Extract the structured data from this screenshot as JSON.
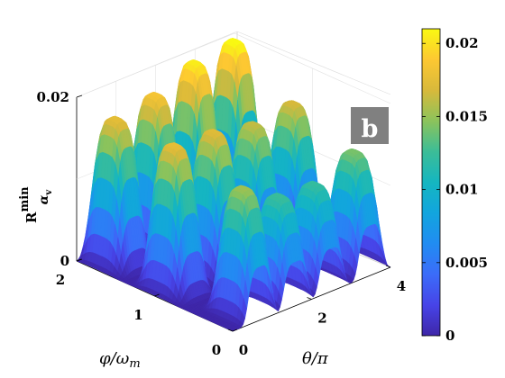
{
  "chart_data": {
    "type": "surface3d",
    "title": "",
    "panel_label": "b",
    "xlabel": "φ/ω",
    "xlabel_sub": "m",
    "ylabel": "θ/π",
    "zlabel": "R",
    "zlabel_sup": "min",
    "zlabel_sub": "α",
    "zlabel_subsub": "v",
    "xlim": [
      0,
      2
    ],
    "ylim": [
      0,
      4
    ],
    "zlim": [
      0,
      0.02
    ],
    "x_ticks": [
      "0",
      "1",
      "2"
    ],
    "y_ticks": [
      "0",
      "2",
      "4"
    ],
    "z_ticks": [
      "0",
      "0.02"
    ],
    "colorbar": {
      "min": 0,
      "max": 0.021,
      "ticks": [
        "0",
        "0.005",
        "0.01",
        "0.015",
        "0.02"
      ],
      "tick_values": [
        0,
        0.005,
        0.01,
        0.015,
        0.02
      ],
      "colormap": "parula"
    },
    "peaks": [
      {
        "phi_over_omega": 0.22,
        "theta_over_pi": 0.7,
        "z": 0.0152
      },
      {
        "phi_over_omega": 0.22,
        "theta_over_pi": 1.6,
        "z": 0.0125
      },
      {
        "phi_over_omega": 0.22,
        "theta_over_pi": 2.5,
        "z": 0.0122
      },
      {
        "phi_over_omega": 0.22,
        "theta_over_pi": 3.5,
        "z": 0.0142
      },
      {
        "phi_over_omega": 1.0,
        "theta_over_pi": 0.5,
        "z": 0.0175
      },
      {
        "phi_over_omega": 1.0,
        "theta_over_pi": 1.5,
        "z": 0.0172
      },
      {
        "phi_over_omega": 1.0,
        "theta_over_pi": 2.5,
        "z": 0.0162
      },
      {
        "phi_over_omega": 1.0,
        "theta_over_pi": 3.5,
        "z": 0.0168
      },
      {
        "phi_over_omega": 1.75,
        "theta_over_pi": 0.5,
        "z": 0.0175
      },
      {
        "phi_over_omega": 1.75,
        "theta_over_pi": 1.5,
        "z": 0.0185
      },
      {
        "phi_over_omega": 1.75,
        "theta_over_pi": 2.5,
        "z": 0.0205
      },
      {
        "phi_over_omega": 1.75,
        "theta_over_pi": 3.5,
        "z": 0.0212
      }
    ],
    "grid": true
  }
}
